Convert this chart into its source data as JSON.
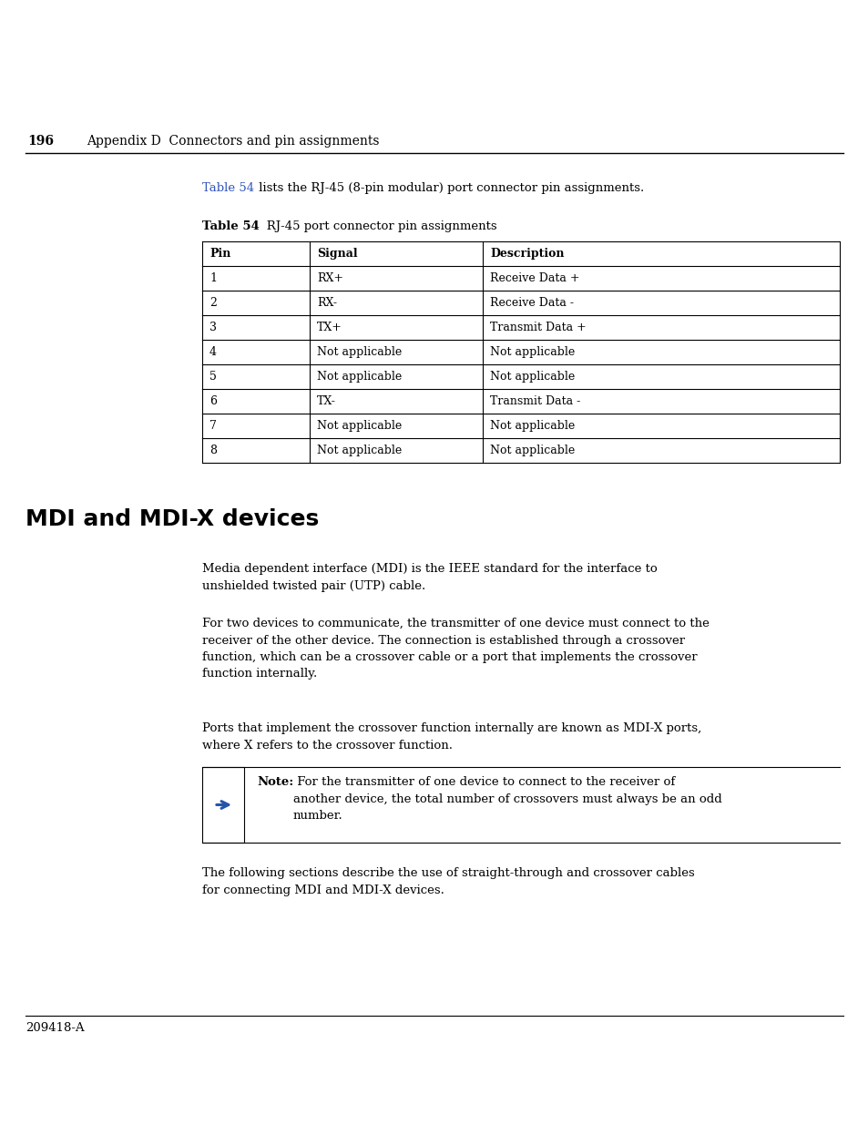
{
  "page_num": "196",
  "header_text": "Appendix D  Connectors and pin assignments",
  "intro_link": "Table 54",
  "intro_text": " lists the RJ-45 (8-pin modular) port connector pin assignments.",
  "table_caption_bold": "Table 54",
  "table_caption_rest": "   RJ-45 port connector pin assignments",
  "table_headers": [
    "Pin",
    "Signal",
    "Description"
  ],
  "table_rows": [
    [
      "1",
      "RX+",
      "Receive Data +"
    ],
    [
      "2",
      "RX-",
      "Receive Data -"
    ],
    [
      "3",
      "TX+",
      "Transmit Data +"
    ],
    [
      "4",
      "Not applicable",
      "Not applicable"
    ],
    [
      "5",
      "Not applicable",
      "Not applicable"
    ],
    [
      "6",
      "TX-",
      "Transmit Data -"
    ],
    [
      "7",
      "Not applicable",
      "Not applicable"
    ],
    [
      "8",
      "Not applicable",
      "Not applicable"
    ]
  ],
  "section_title": "MDI and MDI-X devices",
  "para1": "Media dependent interface (MDI) is the IEEE standard for the interface to\nunshielded twisted pair (UTP) cable.",
  "para2": "For two devices to communicate, the transmitter of one device must connect to the\nreceiver of the other device. The connection is established through a crossover\nfunction, which can be a crossover cable or a port that implements the crossover\nfunction internally.",
  "para3": "Ports that implement the crossover function internally are known as MDI-X ports,\nwhere X refers to the crossover function.",
  "note_label": "Note:",
  "note_body": " For the transmitter of one device to connect to the receiver of\nanother device, the total number of crossovers must always be an odd\nnumber.",
  "para4": "The following sections describe the use of straight-through and crossover cables\nfor connecting MDI and MDI-X devices.",
  "footer_text": "209418-A",
  "bg_color": "#ffffff",
  "text_color": "#000000",
  "link_color": "#3355bb",
  "arrow_color": "#2255aa"
}
